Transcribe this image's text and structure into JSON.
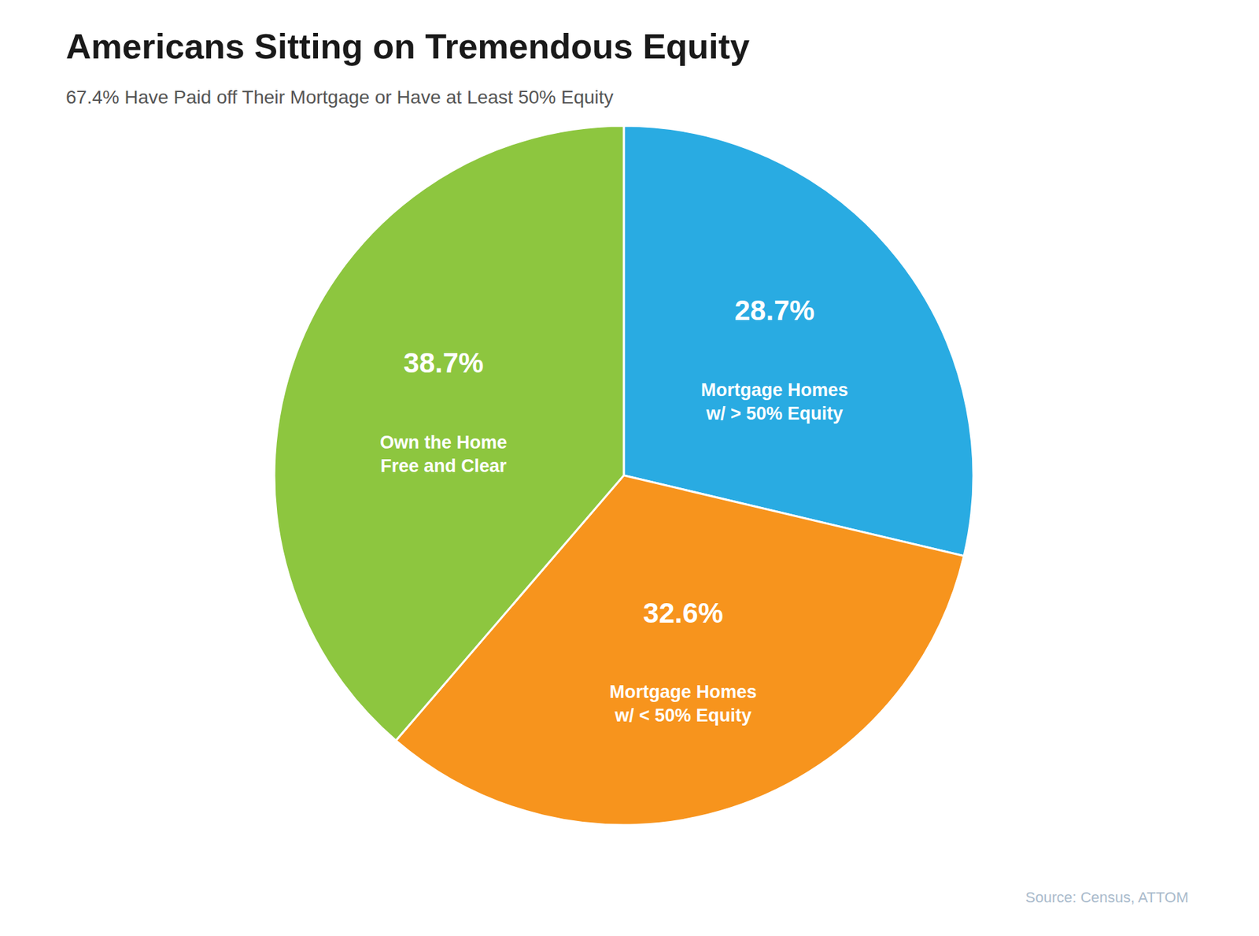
{
  "chart_data": {
    "type": "pie",
    "title": "Americans Sitting on Tremendous Equity",
    "subtitle": "67.4% Have Paid off Their Mortgage or Have at Least 50% Equity",
    "source": "Source: Census, ATTOM",
    "categories": [
      "Mortgage Homes\nw/ > 50% Equity",
      "Mortgage Homes\nw/ < 50% Equity",
      "Own the Home\nFree and Clear"
    ],
    "values": [
      28.7,
      32.6,
      38.7
    ],
    "value_labels": [
      "28.7%",
      "32.6%",
      "38.7%"
    ],
    "colors": [
      "#29ABE2",
      "#F7941D",
      "#8DC63F"
    ],
    "data_labels": true
  }
}
